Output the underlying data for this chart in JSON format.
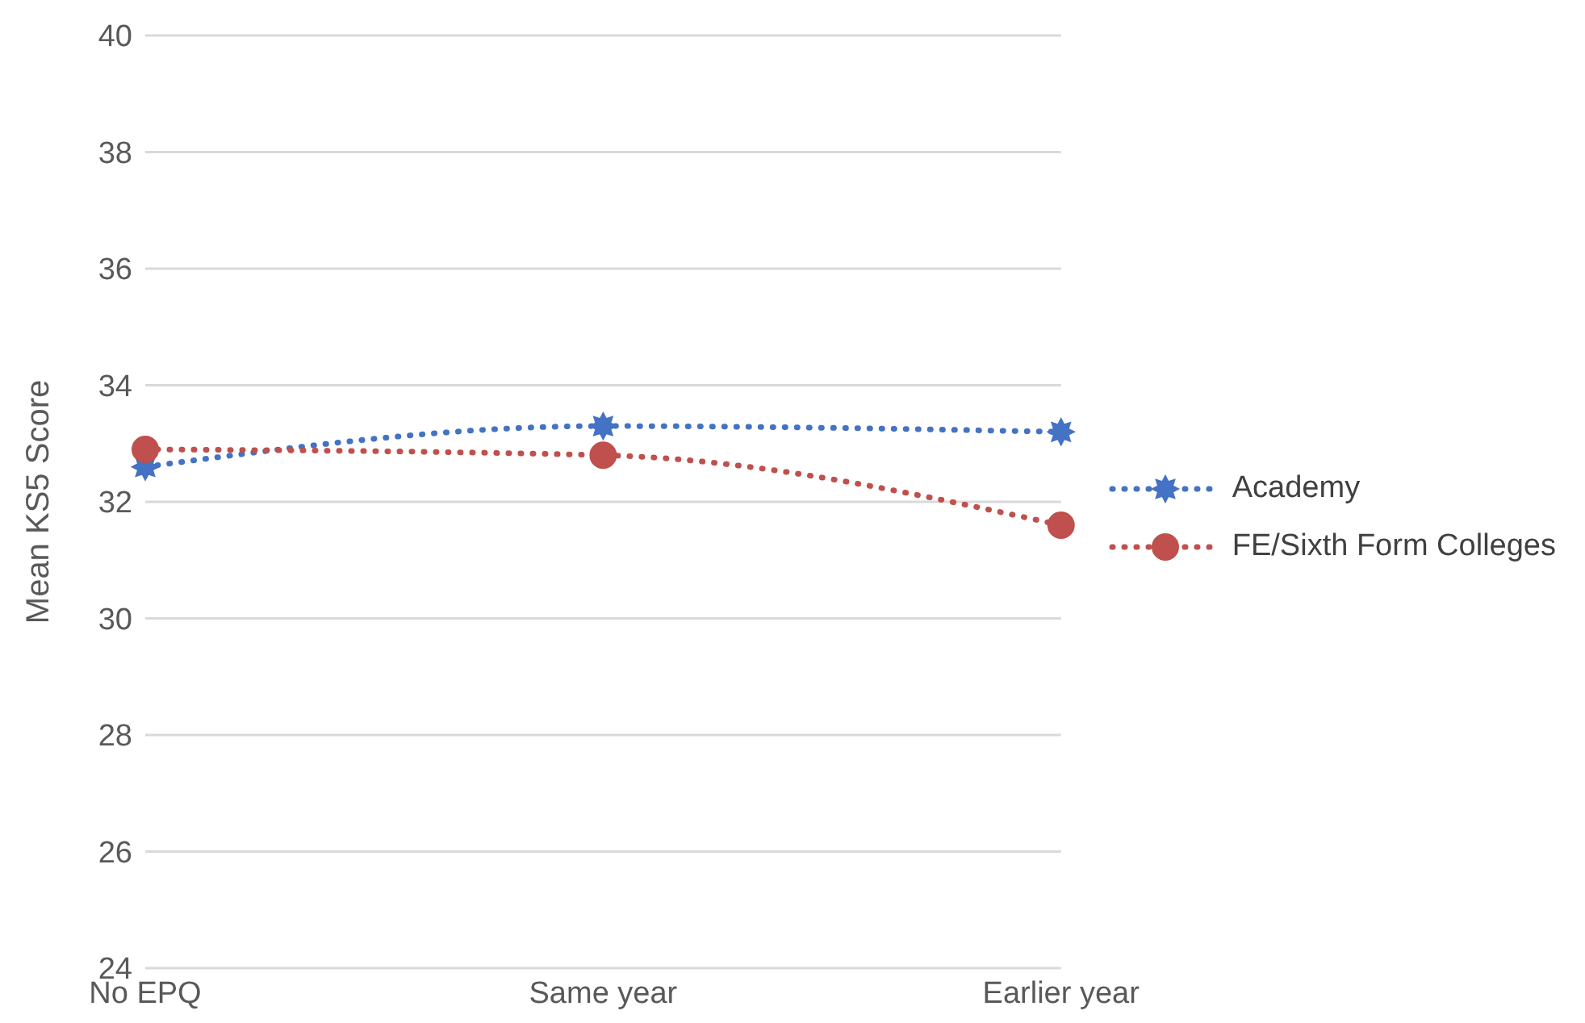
{
  "chart_data": {
    "type": "line",
    "ylabel": "Mean KS5 Score",
    "categories": [
      "No EPQ",
      "Same year",
      "Earlier year"
    ],
    "series": [
      {
        "name": "Academy",
        "color": "#4472c4",
        "values": [
          32.6,
          33.3,
          33.2
        ],
        "marker": "star"
      },
      {
        "name": "FE/Sixth Form Colleges",
        "color": "#c0504d",
        "values": [
          32.9,
          32.8,
          31.6
        ],
        "marker": "circle"
      }
    ],
    "ylim": [
      24,
      40
    ],
    "yticks": [
      24,
      26,
      28,
      30,
      32,
      34,
      36,
      38,
      40
    ],
    "grid": "y",
    "legend": "right",
    "line_style": "dotted"
  }
}
